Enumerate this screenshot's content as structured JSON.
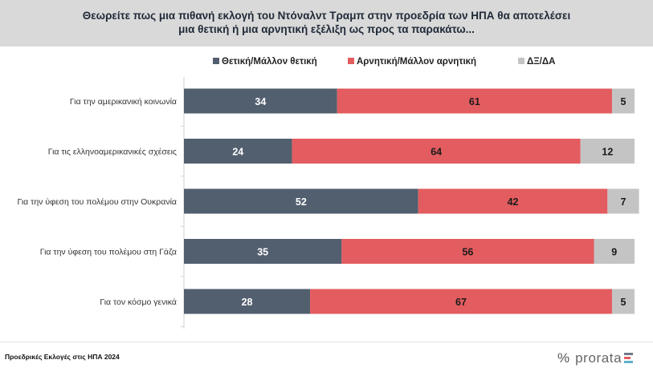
{
  "header": {
    "line1": "Θεωρείτε πως μια πιθανή εκλογή του Ντόναλντ Τραμπ στην προεδρία των ΗΠΑ θα αποτελέσει",
    "line2": "μια θετική ή μια αρνητική εξέλιξη ως προς τα παρακάτω..."
  },
  "chart_data": {
    "type": "bar",
    "orientation": "horizontal",
    "stacked": true,
    "title": "Θεωρείτε πως μια πιθανή εκλογή του Ντόναλντ Τραμπ στην προεδρία των ΗΠΑ θα αποτελέσει μια θετική ή μια αρνητική εξέλιξη ως προς τα παρακάτω...",
    "categories": [
      "Για την αμερικανική κοινωνία",
      "Για τις ελληνοαμερικανικές σχέσεις",
      "Για την ύφεση του πολέμου στην Ουκρανία",
      "Για την ύφεση του πολέμου στη Γάζα",
      "Για τον κόσμο γενικά"
    ],
    "series": [
      {
        "name": "Θετική/Μάλλον θετική",
        "color": "#525f6f",
        "label_color": "#ffffff",
        "values": [
          34,
          24,
          52,
          35,
          28
        ]
      },
      {
        "name": "Αρνητική/Μάλλον αρνητική",
        "color": "#e35c5f",
        "label_color": "#1a1a1a",
        "values": [
          61,
          64,
          42,
          56,
          67
        ]
      },
      {
        "name": "ΔΞ/ΔΑ",
        "color": "#c4c4c4",
        "label_color": "#1a1a1a",
        "values": [
          5,
          12,
          7,
          9,
          5
        ]
      }
    ],
    "xlim": [
      0,
      100
    ],
    "legend_position": "top",
    "grid": false
  },
  "footer": {
    "source": "Προεδρικές Εκλογές στις ΗΠΑ 2024",
    "logo_text": "prorata",
    "logo_mark": "%"
  }
}
